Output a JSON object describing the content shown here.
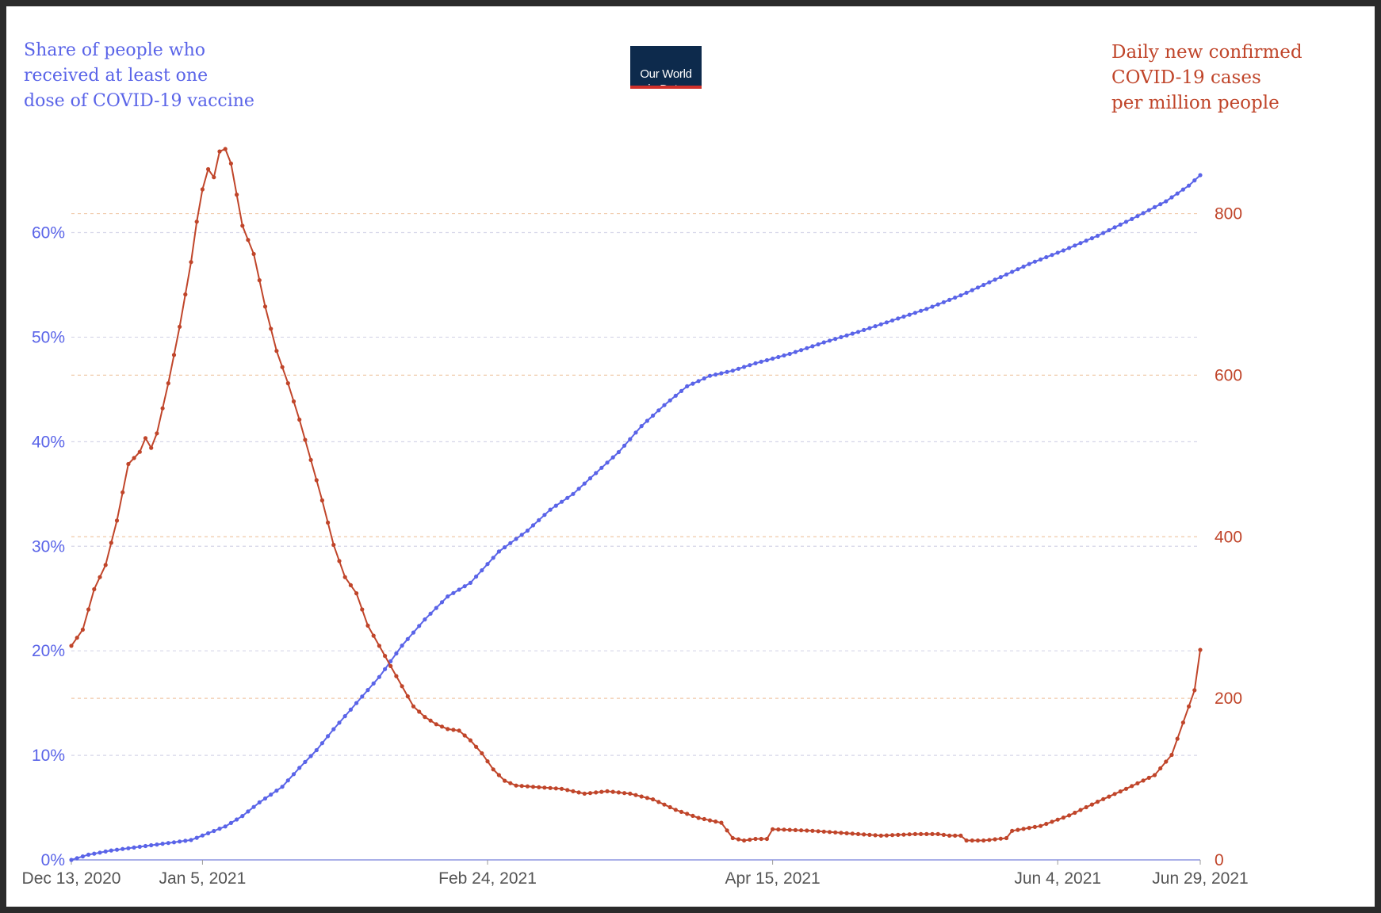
{
  "logo": {
    "text": "Our World\nin Data"
  },
  "chart_data": {
    "type": "line",
    "title": "",
    "left_axis": {
      "label": "Share of people who\nreceived at least one\ndose of COVID-19 vaccine",
      "ticks": [
        "0%",
        "10%",
        "20%",
        "30%",
        "40%",
        "50%",
        "60%"
      ],
      "ylim": [
        0,
        68
      ],
      "color": "#5a64e8"
    },
    "right_axis": {
      "label": "Daily new confirmed\nCOVID-19 cases\nper million people",
      "ticks": [
        "0",
        "200",
        "400",
        "600",
        "800"
      ],
      "ylim": [
        0,
        880
      ],
      "color": "#c0452a"
    },
    "x_axis": {
      "ticks": [
        "Dec 13, 2020",
        "Jan 5, 2021",
        "Feb 24, 2021",
        "Apr 15, 2021",
        "Jun 4, 2021",
        "Jun 29, 2021"
      ],
      "tick_days": [
        0,
        23,
        73,
        123,
        173,
        198
      ],
      "range_days": [
        0,
        198
      ]
    },
    "grid": true,
    "series": [
      {
        "axis": "left",
        "color": "#5a64e8",
        "points": [
          [
            0,
            0
          ],
          [
            3,
            0.5
          ],
          [
            7,
            0.9
          ],
          [
            14,
            1.4
          ],
          [
            21,
            1.9
          ],
          [
            27,
            3.2
          ],
          [
            30,
            4.2
          ],
          [
            33,
            5.5
          ],
          [
            37,
            7.0
          ],
          [
            40,
            8.8
          ],
          [
            43,
            10.5
          ],
          [
            46,
            12.5
          ],
          [
            50,
            15
          ],
          [
            54,
            17.5
          ],
          [
            58,
            20.5
          ],
          [
            62,
            23
          ],
          [
            66,
            25.2
          ],
          [
            70,
            26.5
          ],
          [
            75,
            29.5
          ],
          [
            80,
            31.5
          ],
          [
            84,
            33.5
          ],
          [
            88,
            35
          ],
          [
            92,
            37
          ],
          [
            96,
            39
          ],
          [
            100,
            41.5
          ],
          [
            104,
            43.5
          ],
          [
            108,
            45.3
          ],
          [
            112,
            46.3
          ],
          [
            116,
            46.8
          ],
          [
            120,
            47.5
          ],
          [
            126,
            48.4
          ],
          [
            132,
            49.5
          ],
          [
            138,
            50.5
          ],
          [
            144,
            51.6
          ],
          [
            150,
            52.7
          ],
          [
            156,
            54.0
          ],
          [
            162,
            55.5
          ],
          [
            168,
            57.0
          ],
          [
            174,
            58.3
          ],
          [
            180,
            59.7
          ],
          [
            186,
            61.3
          ],
          [
            192,
            63.0
          ],
          [
            196,
            64.5
          ],
          [
            198,
            65.5
          ]
        ]
      },
      {
        "axis": "right",
        "color": "#c0452a",
        "points": [
          [
            0,
            265
          ],
          [
            2,
            285
          ],
          [
            4,
            335
          ],
          [
            6,
            365
          ],
          [
            8,
            420
          ],
          [
            10,
            490
          ],
          [
            12,
            505
          ],
          [
            13,
            522
          ],
          [
            14,
            510
          ],
          [
            15,
            528
          ],
          [
            17,
            590
          ],
          [
            19,
            660
          ],
          [
            21,
            740
          ],
          [
            22,
            790
          ],
          [
            23,
            830
          ],
          [
            24,
            855
          ],
          [
            25,
            845
          ],
          [
            26,
            877
          ],
          [
            27,
            880
          ],
          [
            28,
            862
          ],
          [
            30,
            785
          ],
          [
            32,
            750
          ],
          [
            34,
            685
          ],
          [
            36,
            630
          ],
          [
            38,
            590
          ],
          [
            40,
            545
          ],
          [
            42,
            495
          ],
          [
            44,
            445
          ],
          [
            46,
            390
          ],
          [
            48,
            350
          ],
          [
            50,
            330
          ],
          [
            52,
            290
          ],
          [
            54,
            265
          ],
          [
            56,
            240
          ],
          [
            58,
            215
          ],
          [
            60,
            190
          ],
          [
            62,
            177
          ],
          [
            64,
            168
          ],
          [
            66,
            162
          ],
          [
            68,
            160
          ],
          [
            70,
            148
          ],
          [
            72,
            132
          ],
          [
            74,
            112
          ],
          [
            76,
            98
          ],
          [
            78,
            92
          ],
          [
            82,
            90
          ],
          [
            86,
            88
          ],
          [
            90,
            82
          ],
          [
            94,
            85
          ],
          [
            98,
            82
          ],
          [
            102,
            75
          ],
          [
            106,
            62
          ],
          [
            110,
            52
          ],
          [
            114,
            46
          ],
          [
            116,
            27
          ],
          [
            118,
            24
          ],
          [
            120,
            26
          ],
          [
            122,
            26
          ],
          [
            123,
            38
          ],
          [
            130,
            36
          ],
          [
            136,
            33
          ],
          [
            142,
            30
          ],
          [
            148,
            32
          ],
          [
            152,
            32
          ],
          [
            154,
            30
          ],
          [
            156,
            30
          ],
          [
            157,
            24
          ],
          [
            160,
            24
          ],
          [
            164,
            27
          ],
          [
            165,
            36
          ],
          [
            170,
            42
          ],
          [
            175,
            55
          ],
          [
            180,
            72
          ],
          [
            185,
            88
          ],
          [
            190,
            105
          ],
          [
            193,
            130
          ],
          [
            195,
            170
          ],
          [
            197,
            210
          ],
          [
            198,
            260
          ]
        ]
      }
    ]
  }
}
